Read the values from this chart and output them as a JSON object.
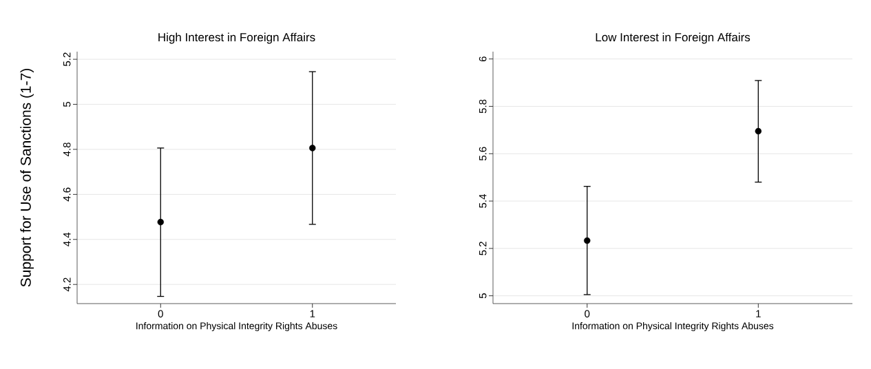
{
  "chart_data": [
    {
      "type": "scatter",
      "title": "High Interest in Foreign Affairs",
      "xlabel": "Information on Physical Integrity Rights Abuses",
      "ylabel": "Support for Use of Sanctions (1-7)",
      "categories": [
        "0",
        "1"
      ],
      "values": [
        4.477,
        4.806
      ],
      "errors": [
        [
          4.147,
          4.806
        ],
        [
          4.467,
          5.145
        ]
      ],
      "color": "#000000",
      "ylim": [
        4.115,
        5.234
      ],
      "yticks": [
        4.2,
        4.4,
        4.6,
        4.8,
        5,
        5.2
      ],
      "grid": "y",
      "marker": "circle"
    },
    {
      "type": "scatter",
      "title": "Low Interest in Foreign Affairs",
      "xlabel": "Information on Physical Integrity Rights Abuses",
      "categories": [
        "0",
        "1"
      ],
      "values": [
        5.233,
        5.695
      ],
      "errors": [
        [
          5.005,
          5.462
        ],
        [
          5.48,
          5.909
        ]
      ],
      "color": "#000000",
      "ylim": [
        4.967,
        6.031
      ],
      "yticks": [
        5,
        5.2,
        5.4,
        5.6,
        5.8,
        6
      ],
      "grid": "y",
      "marker": "circle"
    }
  ]
}
